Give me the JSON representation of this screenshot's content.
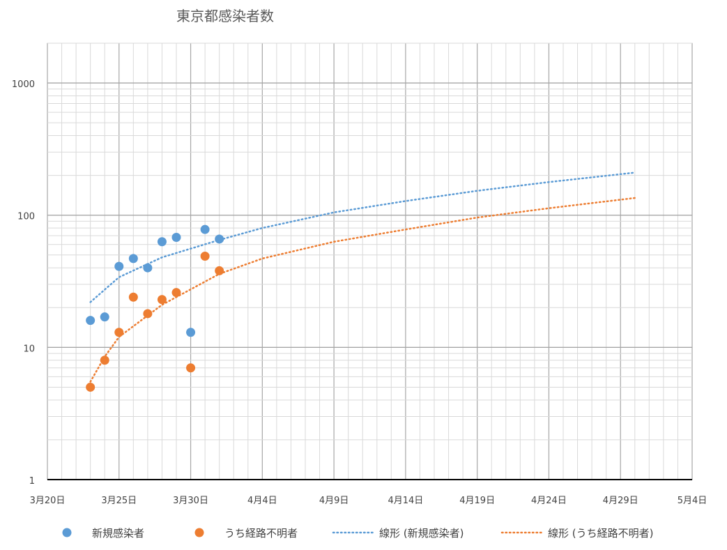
{
  "chart_data": {
    "type": "scatter",
    "title": "東京都感染者数",
    "y_scale": "log",
    "ylim": [
      1,
      2000
    ],
    "xlim": [
      "2020-03-20",
      "2020-05-04"
    ],
    "x_tick_labels": [
      "3月20日",
      "3月25日",
      "3月30日",
      "4月4日",
      "4月9日",
      "4月14日",
      "4月19日",
      "4月24日",
      "4月29日",
      "5月4日"
    ],
    "y_tick_labels": [
      "1",
      "10",
      "100",
      "1000"
    ],
    "grid": true,
    "legend_position": "bottom",
    "series": [
      {
        "name": "新規感染者",
        "marker": "circle",
        "color": "#5B9BD5",
        "points": [
          {
            "x": "2020-03-23",
            "y": 16
          },
          {
            "x": "2020-03-24",
            "y": 17
          },
          {
            "x": "2020-03-25",
            "y": 41
          },
          {
            "x": "2020-03-26",
            "y": 47
          },
          {
            "x": "2020-03-27",
            "y": 40
          },
          {
            "x": "2020-03-28",
            "y": 63
          },
          {
            "x": "2020-03-29",
            "y": 68
          },
          {
            "x": "2020-03-30",
            "y": 13
          },
          {
            "x": "2020-03-31",
            "y": 78
          },
          {
            "x": "2020-04-01",
            "y": 66
          }
        ]
      },
      {
        "name": "うち経路不明者",
        "marker": "circle",
        "color": "#ED7D31",
        "points": [
          {
            "x": "2020-03-23",
            "y": 5
          },
          {
            "x": "2020-03-24",
            "y": 8
          },
          {
            "x": "2020-03-25",
            "y": 13
          },
          {
            "x": "2020-03-26",
            "y": 24
          },
          {
            "x": "2020-03-27",
            "y": 18
          },
          {
            "x": "2020-03-28",
            "y": 23
          },
          {
            "x": "2020-03-29",
            "y": 26
          },
          {
            "x": "2020-03-30",
            "y": 7
          },
          {
            "x": "2020-03-31",
            "y": 49
          },
          {
            "x": "2020-04-01",
            "y": 38
          }
        ]
      },
      {
        "name": "線形 (新規感染者)",
        "type": "trendline",
        "style": "dotted",
        "color": "#5B9BD5",
        "points": [
          {
            "x": "2020-03-23",
            "y": 22
          },
          {
            "x": "2020-03-25",
            "y": 34
          },
          {
            "x": "2020-03-28",
            "y": 48
          },
          {
            "x": "2020-04-01",
            "y": 65
          },
          {
            "x": "2020-04-04",
            "y": 80
          },
          {
            "x": "2020-04-09",
            "y": 105
          },
          {
            "x": "2020-04-14",
            "y": 128
          },
          {
            "x": "2020-04-19",
            "y": 153
          },
          {
            "x": "2020-04-24",
            "y": 178
          },
          {
            "x": "2020-04-30",
            "y": 210
          }
        ]
      },
      {
        "name": "線形 (うち経路不明者)",
        "type": "trendline",
        "style": "dotted",
        "color": "#ED7D31",
        "points": [
          {
            "x": "2020-03-23",
            "y": 5.5
          },
          {
            "x": "2020-03-24",
            "y": 8.5
          },
          {
            "x": "2020-03-25",
            "y": 12
          },
          {
            "x": "2020-03-28",
            "y": 21
          },
          {
            "x": "2020-04-01",
            "y": 36
          },
          {
            "x": "2020-04-04",
            "y": 47
          },
          {
            "x": "2020-04-09",
            "y": 63
          },
          {
            "x": "2020-04-14",
            "y": 78
          },
          {
            "x": "2020-04-19",
            "y": 96
          },
          {
            "x": "2020-04-24",
            "y": 113
          },
          {
            "x": "2020-04-30",
            "y": 135
          }
        ]
      }
    ]
  }
}
